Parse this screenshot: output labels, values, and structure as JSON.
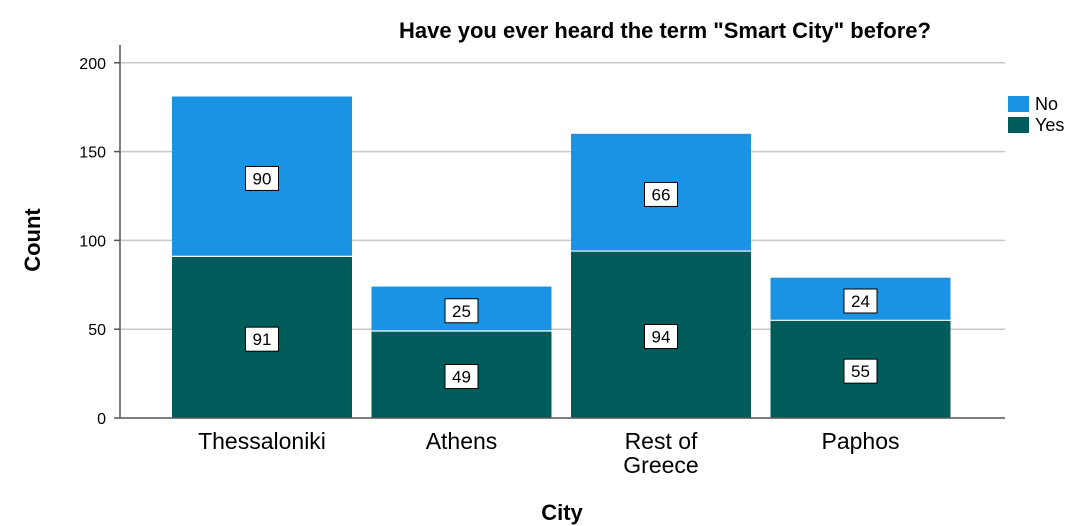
{
  "chart_data": {
    "type": "bar",
    "stacked": true,
    "title": "Have you ever heard the term \"Smart City\" before?",
    "xlabel": "City",
    "ylabel": "Count",
    "ylim": [
      0,
      210
    ],
    "yticks": [
      0,
      50,
      100,
      150,
      200
    ],
    "grid": true,
    "legend_position": "right",
    "categories": [
      [
        "Thessaloniki"
      ],
      [
        "Athens"
      ],
      [
        "Rest of",
        "Greece"
      ],
      [
        "Paphos"
      ]
    ],
    "series": [
      {
        "name": "Yes",
        "color": "#005c5a",
        "values": [
          91,
          49,
          94,
          55
        ]
      },
      {
        "name": "No",
        "color": "#1b93e4",
        "values": [
          90,
          25,
          66,
          24
        ]
      }
    ],
    "legend_order": [
      "No",
      "Yes"
    ]
  }
}
